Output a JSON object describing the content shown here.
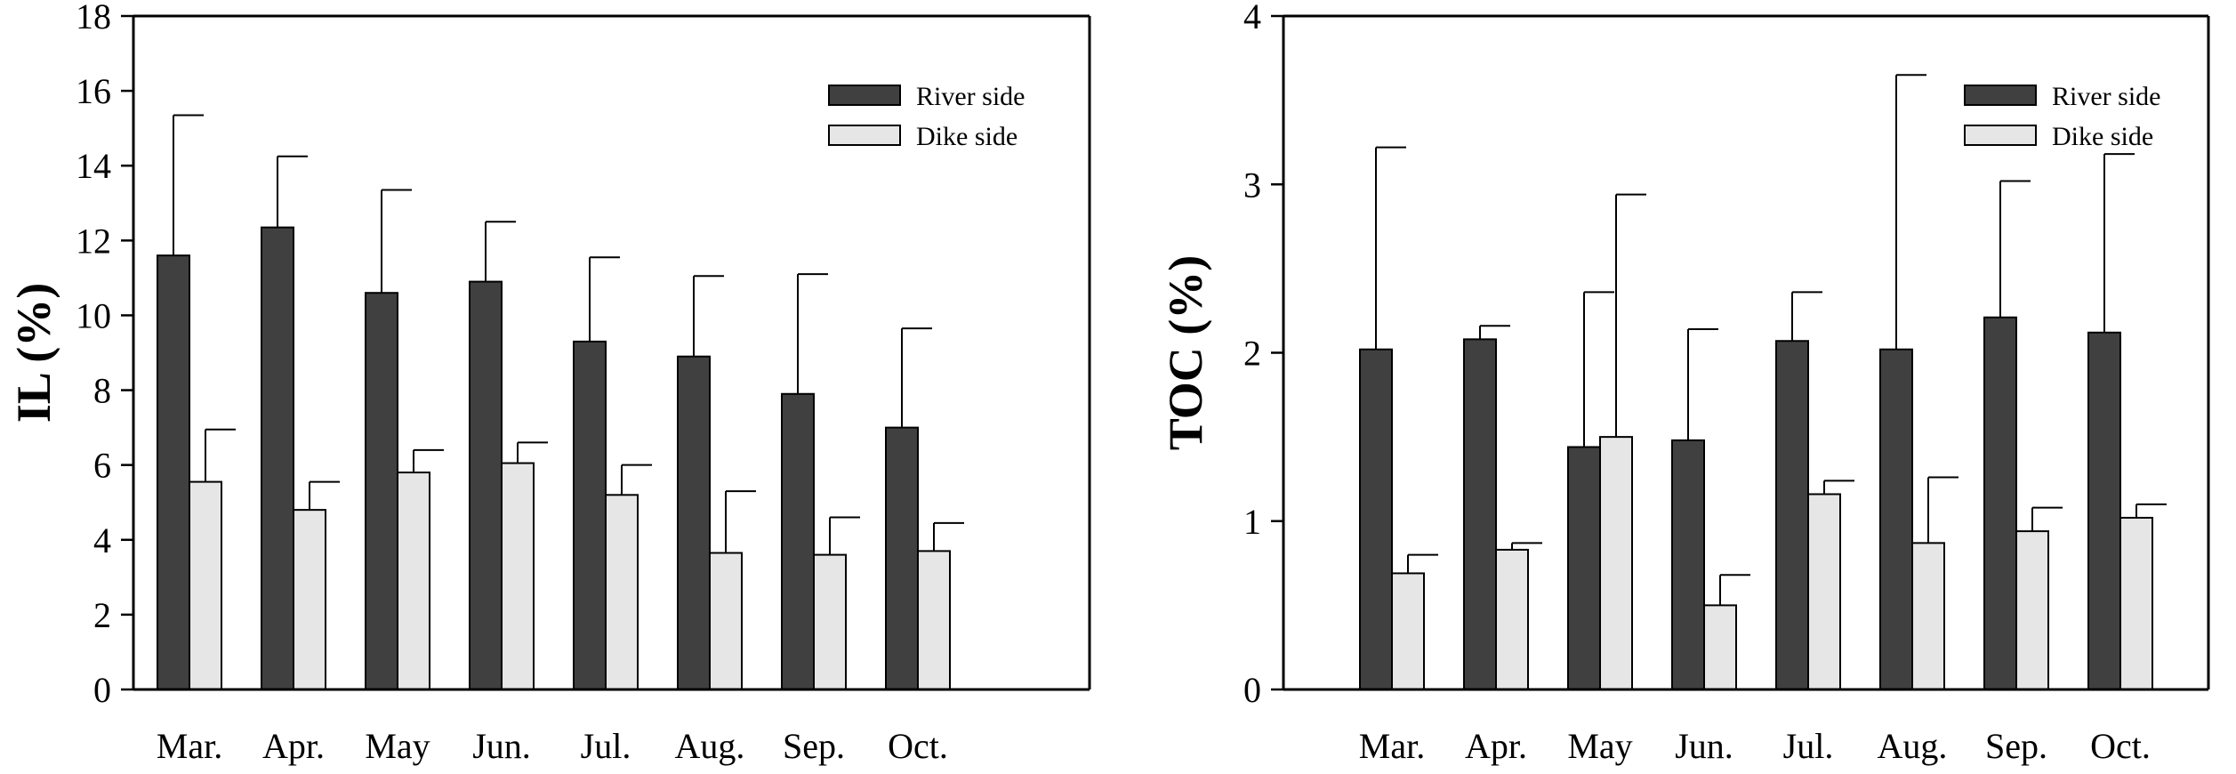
{
  "chart_data": [
    {
      "type": "bar",
      "ylabel": "IL (%)",
      "xlabel": "",
      "ylim": [
        0,
        18
      ],
      "yticks": [
        0,
        2,
        4,
        6,
        8,
        10,
        12,
        14,
        16,
        18
      ],
      "categories": [
        "Mar.",
        "Apr.",
        "May",
        "Jun.",
        "Jul.",
        "Aug.",
        "Sep.",
        "Oct."
      ],
      "legend_position": "top-right",
      "series": [
        {
          "name": "River side",
          "color": "#404040",
          "values": [
            11.6,
            12.35,
            10.6,
            10.9,
            9.3,
            8.9,
            7.9,
            7.0
          ],
          "error": [
            3.75,
            1.9,
            2.75,
            1.6,
            2.25,
            2.15,
            3.2,
            2.65
          ]
        },
        {
          "name": "Dike side",
          "color": "#e6e6e6",
          "values": [
            5.55,
            4.8,
            5.8,
            6.05,
            5.2,
            3.65,
            3.6,
            3.7
          ],
          "error": [
            1.4,
            0.75,
            0.6,
            0.55,
            0.8,
            1.65,
            1.0,
            0.75
          ]
        }
      ]
    },
    {
      "type": "bar",
      "ylabel": "TOC (%)",
      "xlabel": "",
      "ylim": [
        0,
        4
      ],
      "yticks": [
        0,
        1,
        2,
        3,
        4
      ],
      "categories": [
        "Mar.",
        "Apr.",
        "May",
        "Jun.",
        "Jul.",
        "Aug.",
        "Sep.",
        "Oct."
      ],
      "legend_position": "top-right",
      "series": [
        {
          "name": "River side",
          "color": "#404040",
          "values": [
            2.02,
            2.08,
            1.44,
            1.48,
            2.07,
            2.02,
            2.21,
            2.12
          ],
          "error": [
            1.2,
            0.08,
            0.92,
            0.66,
            0.29,
            1.63,
            0.81,
            1.06
          ]
        },
        {
          "name": "Dike side",
          "color": "#e6e6e6",
          "values": [
            0.69,
            0.83,
            1.5,
            0.5,
            1.16,
            0.87,
            0.94,
            1.02
          ],
          "error": [
            0.11,
            0.04,
            1.44,
            0.18,
            0.08,
            0.39,
            0.14,
            0.08
          ]
        }
      ]
    }
  ]
}
